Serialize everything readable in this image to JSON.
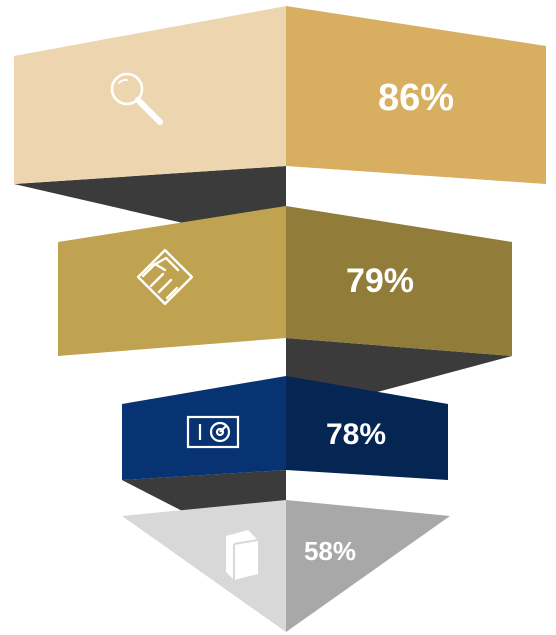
{
  "funnel": {
    "stages": [
      {
        "value": "86%",
        "icon": "magnifier-icon",
        "colors": {
          "left": "#EDD6AF",
          "right": "#D8AE61",
          "shadow": "#3B3B3B"
        }
      },
      {
        "value": "79%",
        "icon": "handshake-icon",
        "colors": {
          "left": "#C0A351",
          "right": "#927C39",
          "shadow": "#3B3B3B"
        }
      },
      {
        "value": "78%",
        "icon": "safe-icon",
        "colors": {
          "left": "#083372",
          "right": "#052553",
          "shadow": "#3B3B3B"
        }
      },
      {
        "value": "58%",
        "icon": "book-icon",
        "colors": {
          "left": "#D8D8D8",
          "right": "#A8A8A8"
        }
      }
    ]
  }
}
